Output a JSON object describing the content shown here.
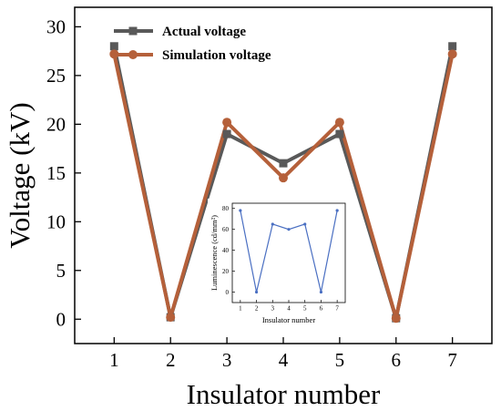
{
  "chart_data": [
    {
      "type": "line",
      "xlabel": "Insulator number",
      "ylabel": "Voltage (kV)",
      "x": [
        1,
        2,
        3,
        4,
        5,
        6,
        7
      ],
      "xlim": [
        0.3,
        7.7
      ],
      "ylim": [
        -2.5,
        32
      ],
      "yticks": [
        0,
        5,
        10,
        15,
        20,
        25,
        30
      ],
      "grid": false,
      "legend_position": "top-left",
      "series": [
        {
          "name": "Actual voltage",
          "marker": "square",
          "color": "#595959",
          "values": [
            28.0,
            0.2,
            19.0,
            16.0,
            19.0,
            0.1,
            28.0
          ]
        },
        {
          "name": "Simulation voltage",
          "marker": "circle",
          "color": "#b5603a",
          "values": [
            27.2,
            0.2,
            20.2,
            14.5,
            20.2,
            0.1,
            27.2
          ]
        }
      ]
    },
    {
      "type": "line",
      "xlabel": "Insulator number",
      "ylabel": "Luminescence (cd/mm²)",
      "x": [
        1,
        2,
        3,
        4,
        5,
        6,
        7
      ],
      "xlim": [
        0.5,
        7.5
      ],
      "ylim": [
        -10,
        85
      ],
      "yticks": [
        0,
        20,
        40,
        60,
        80
      ],
      "grid": false,
      "series": [
        {
          "color": "#4a6fc2",
          "marker": "dot",
          "values": [
            78,
            0,
            65,
            60,
            65,
            0,
            78
          ]
        }
      ]
    }
  ]
}
